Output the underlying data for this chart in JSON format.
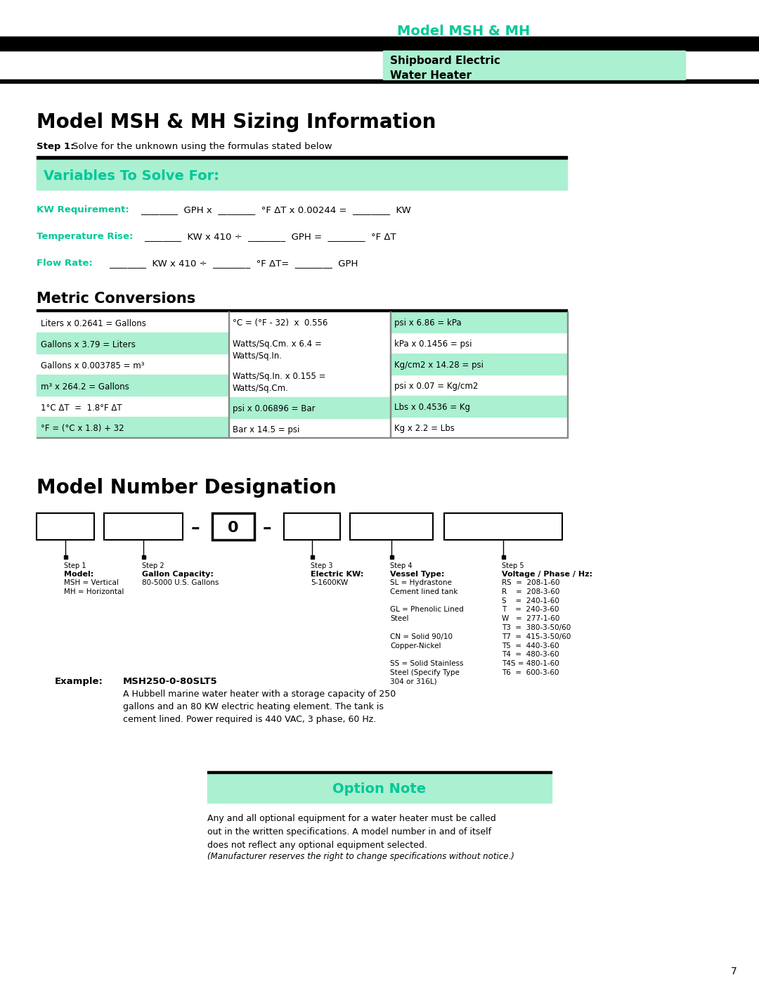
{
  "title_header": "Model MSH & MH",
  "subtitle_header": "Shipboard Electric\nWater Heater",
  "main_title": "Model MSH & MH Sizing Information",
  "step1_label": "Step 1:",
  "step1_text": "Solve for the unknown using the formulas stated below",
  "variables_title": "Variables To Solve For:",
  "kw_label": "KW Requirement:",
  "kw_formula_parts": [
    "________",
    " GPH x ",
    "________",
    " °F ΔT x 0.00244 = ",
    "________",
    " KW"
  ],
  "temp_label": "Temperature Rise:",
  "temp_formula_parts": [
    "________",
    " KW x 410 ÷ ",
    "________",
    " GPH = ",
    "________",
    " °F ΔT"
  ],
  "flow_label": "Flow Rate:",
  "flow_formula_parts": [
    "________",
    " KW x 410 ÷ ",
    "________",
    " °F ΔT= ",
    "________",
    " GPH"
  ],
  "metric_title": "Metric Conversions",
  "col1_rows": [
    "Liters x 0.2641 = Gallons",
    "Gallons x 3.79 = Liters",
    "Gallons x 0.003785 = m³",
    "m³ x 264.2 = Gallons",
    "1°C ΔT  =  1.8°F ΔT",
    "°F = (°C x 1.8) + 32"
  ],
  "col1_highlighted": [
    false,
    true,
    false,
    true,
    false,
    true
  ],
  "col2_rows": [
    "°C = (°F - 32)  x  0.556",
    "Watts/Sq.Cm. x 6.4 =\nWatts/Sq.In.",
    "Watts/Sq.In. x 0.155 =\nWatts/Sq.Cm.",
    "psi x 0.06896 = Bar",
    "Bar x 14.5 = psi"
  ],
  "col2_highlighted": [
    false,
    false,
    false,
    true,
    false
  ],
  "col3_rows": [
    "psi x 6.86 = kPa",
    "kPa x 0.1456 = psi",
    "Kg/cm2 x 14.28 = psi",
    "psi x 0.07 = Kg/cm2",
    "Lbs x 0.4536 = Kg",
    "Kg x 2.2 = Lbs"
  ],
  "col3_highlighted": [
    true,
    false,
    true,
    false,
    true,
    false
  ],
  "model_number_title": "Model Number Designation",
  "option_note_title": "Option Note",
  "option_note_text": "Any and all optional equipment for a water heater must be called out in the written specifications. A model number in and of itself\ndoes not reflect any optional equipment selected.",
  "option_note_italic": "(Manufacturer reserves the right to change specifications without notice.)",
  "example_label": "Example:",
  "example_model": "MSH250-0-80SLT5",
  "example_text": "A Hubbell marine water heater with a storage capacity of 250\ngallons and an 80 KW electric heating element. The tank is\ncement lined. Power required is 440 VAC, 3 phase, 60 Hz.",
  "green_color": "#00C896",
  "light_green": "#AAF0D1",
  "bg_color": "#FFFFFF",
  "page_num": "7",
  "step_labels": [
    "Step 1",
    "Step 2",
    "Step 3",
    "Step 4",
    "Step 5"
  ],
  "step_heads": [
    "Model:",
    "Gallon Capacity:",
    "Electric KW:",
    "Vessel Type:",
    "Voltage / Phase / Hz:"
  ],
  "step_descs": [
    "MSH = Vertical\nMH = Horizontal",
    "80-5000 U.S. Gallons",
    "5-1600KW",
    "SL = Hydrastone\nCement lined tank\n\nGL = Phenolic Lined\nSteel\n\nCN = Solid 90/10\nCopper-Nickel\n\nSS = Solid Stainless\nSteel (Specify Type\n304 or 316L)",
    "RS  =  208-1-60\nR    =  208-3-60\nS    =  240-1-60\nT    =  240-3-60\nW   =  277-1-60\nT3  =  380-3-50/60\nT7  =  415-3-50/60\nT5  =  440-3-60\nT4  =  480-3-60\nT4S = 480-1-60\nT6  =  600-3-60"
  ]
}
